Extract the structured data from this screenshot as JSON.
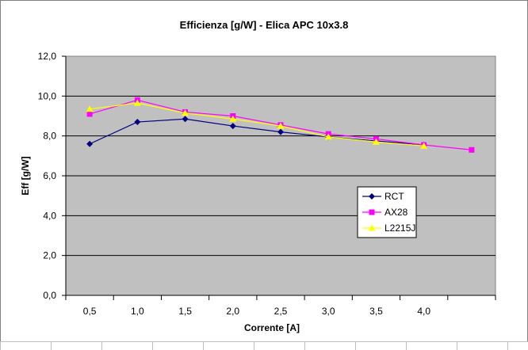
{
  "chart_data": {
    "type": "line",
    "title": "Efficienza [g/W] - Elica APC 10x3.8",
    "xlabel": "Corrente [A]",
    "ylabel": "Eff [g/W]",
    "categories": [
      "0,5",
      "1,0",
      "1,5",
      "2,0",
      "2,5",
      "3,0",
      "3,5",
      "4,0",
      ""
    ],
    "y_ticks": [
      "0,0",
      "2,0",
      "4,0",
      "6,0",
      "8,0",
      "10,0",
      "12,0"
    ],
    "ylim": [
      0,
      12
    ],
    "grid": true,
    "legend": "right",
    "plot_background": "#c0c0c0",
    "series": [
      {
        "name": "RCT",
        "color": "#000080",
        "marker": "diamond",
        "values": [
          7.6,
          8.7,
          8.85,
          8.5,
          8.2,
          7.95,
          7.75,
          7.55,
          null
        ]
      },
      {
        "name": "AX28",
        "color": "#ff00ff",
        "marker": "square",
        "values": [
          9.1,
          9.8,
          9.2,
          9.0,
          8.55,
          8.1,
          7.85,
          7.55,
          7.3
        ]
      },
      {
        "name": "L2215J",
        "color": "#ffff00",
        "marker": "triangle",
        "values": [
          9.35,
          9.65,
          9.15,
          8.85,
          8.5,
          7.95,
          7.7,
          7.5,
          null
        ]
      }
    ]
  }
}
